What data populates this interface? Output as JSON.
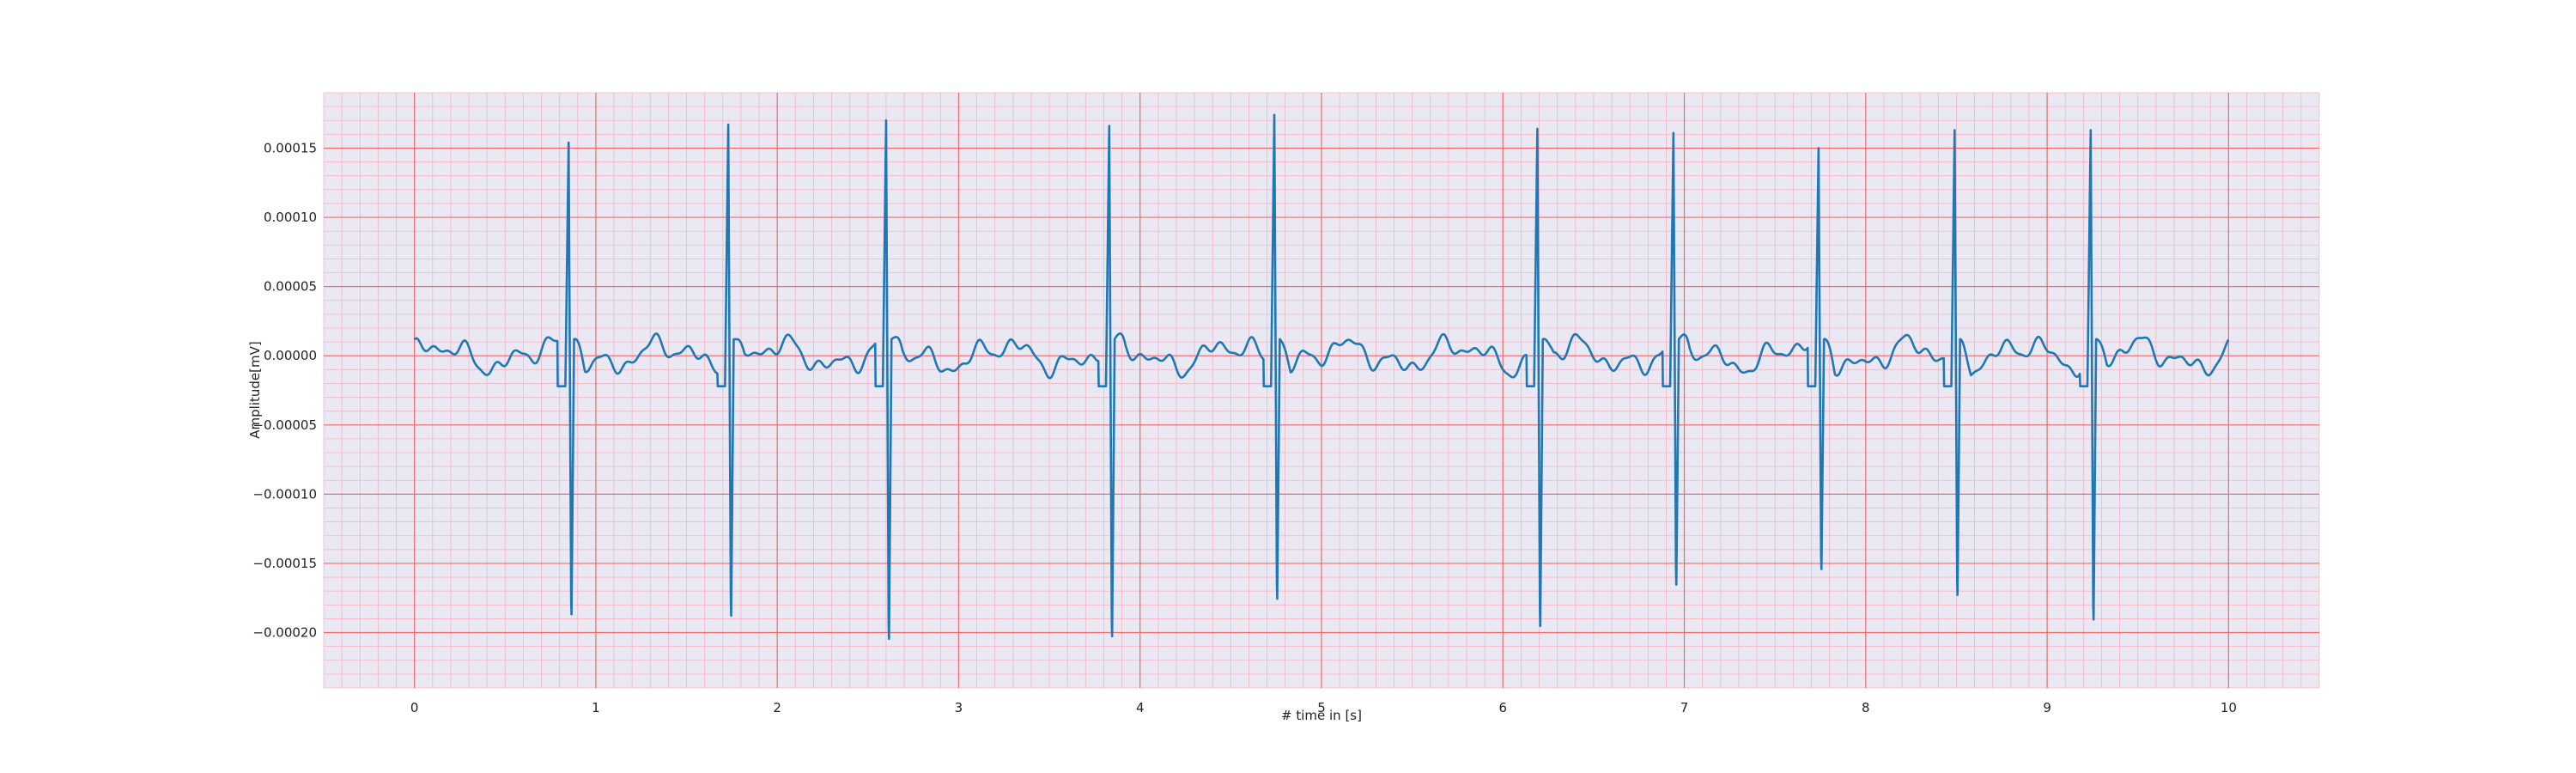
{
  "chart_data": {
    "type": "line",
    "xlabel": "# time in [s]",
    "ylabel": "Amplitude[mV]",
    "xlim": [
      -0.5,
      10.5
    ],
    "ylim": [
      -0.00024,
      0.00019
    ],
    "x_ticks": [
      0,
      1,
      2,
      3,
      4,
      5,
      6,
      7,
      8,
      9,
      10
    ],
    "x_tick_labels": [
      "0",
      "1",
      "2",
      "3",
      "4",
      "5",
      "6",
      "7",
      "8",
      "9",
      "10"
    ],
    "y_ticks": [
      0.00015,
      0.0001,
      5e-05,
      0,
      -5e-05,
      -0.0001,
      -0.00015,
      -0.0002
    ],
    "y_tick_labels": [
      "0.00015",
      "0.00010",
      "0.00005",
      "0.00000",
      "−0.00005",
      "−0.00010",
      "−0.00015",
      "−0.00020"
    ],
    "grid": true,
    "colors": {
      "line": "#1f77b4",
      "background": "#eae8f2",
      "major_grid": "#f26a6a",
      "minor_grid": "#f3b6c2"
    },
    "series": [
      {
        "beats": [
          {
            "t": 0.85,
            "peak": 0.000154,
            "trough": -0.000201
          },
          {
            "t": 1.73,
            "peak": 0.000167,
            "trough": -0.000202
          },
          {
            "t": 2.6,
            "peak": 0.00017,
            "trough": -0.00022
          },
          {
            "t": 3.83,
            "peak": 0.000166,
            "trough": -0.000218
          },
          {
            "t": 4.74,
            "peak": 0.000174,
            "trough": -0.000189
          },
          {
            "t": 6.19,
            "peak": 0.000164,
            "trough": -0.00021
          },
          {
            "t": 6.94,
            "peak": 0.000161,
            "trough": -0.000178
          },
          {
            "t": 7.74,
            "peak": 0.00015,
            "trough": -0.000166
          },
          {
            "t": 8.49,
            "peak": 0.000163,
            "trough": -0.000186
          },
          {
            "t": 9.24,
            "peak": 0.000163,
            "trough": -0.000205
          }
        ]
      }
    ]
  }
}
